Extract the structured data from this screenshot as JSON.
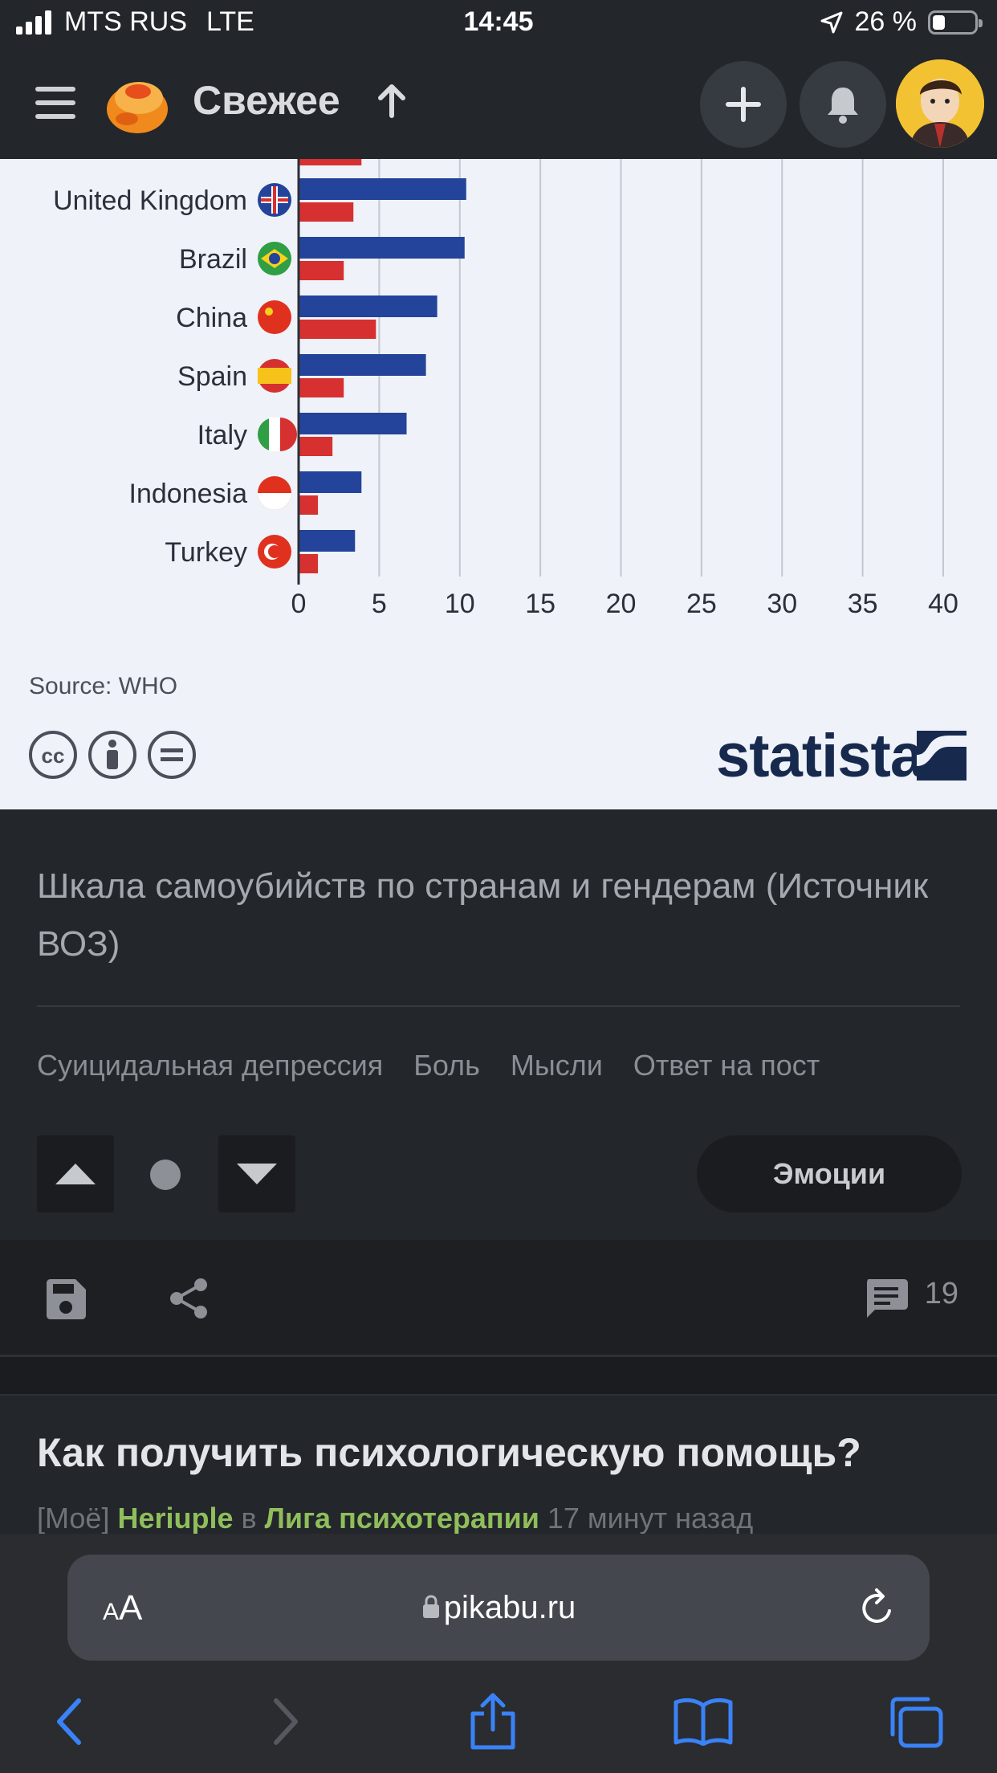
{
  "status_bar": {
    "carrier": "MTS RUS",
    "network": "LTE",
    "time": "14:45",
    "battery_percent": "26 %",
    "battery_level": 0.26
  },
  "header": {
    "title": "Свежее",
    "sort_icon": "arrow-up-icon",
    "add_icon": "plus-icon",
    "notifications_icon": "bell-icon"
  },
  "chart_data": {
    "type": "bar",
    "orientation": "horizontal",
    "categories": [
      "United Kingdom",
      "Brazil",
      "China",
      "Spain",
      "Italy",
      "Indonesia",
      "Turkey"
    ],
    "series": [
      {
        "color": "#23449a",
        "values": [
          10.4,
          10.3,
          8.6,
          7.9,
          6.7,
          3.9,
          3.5
        ]
      },
      {
        "color": "#d63030",
        "values": [
          3.4,
          2.8,
          4.8,
          2.8,
          2.1,
          1.2,
          1.2
        ]
      }
    ],
    "xlim": [
      0,
      40
    ],
    "xticks": [
      "0",
      "5",
      "10",
      "15",
      "20",
      "25",
      "30",
      "35",
      "40"
    ],
    "grid": true
  },
  "chart_footer": {
    "source": "Source: WHO",
    "brand": "statista"
  },
  "post": {
    "caption": "Шкала самоубийств по странам и гендерам (Источник ВОЗ)",
    "tags": [
      "Суицидальная депрессия",
      "Боль",
      "Мысли",
      "Ответ на пост"
    ],
    "emotions_label": "Эмоции",
    "comments_count": "19"
  },
  "next_post": {
    "title": "Как получить психологическую помощь?",
    "tag": "[Моё]",
    "author": "Heriuple",
    "in_word": "в",
    "community": "Лига психотерапии",
    "time_ago": "17 минут назад"
  },
  "browser": {
    "text_size_label": "AA",
    "url": "pikabu.ru"
  }
}
